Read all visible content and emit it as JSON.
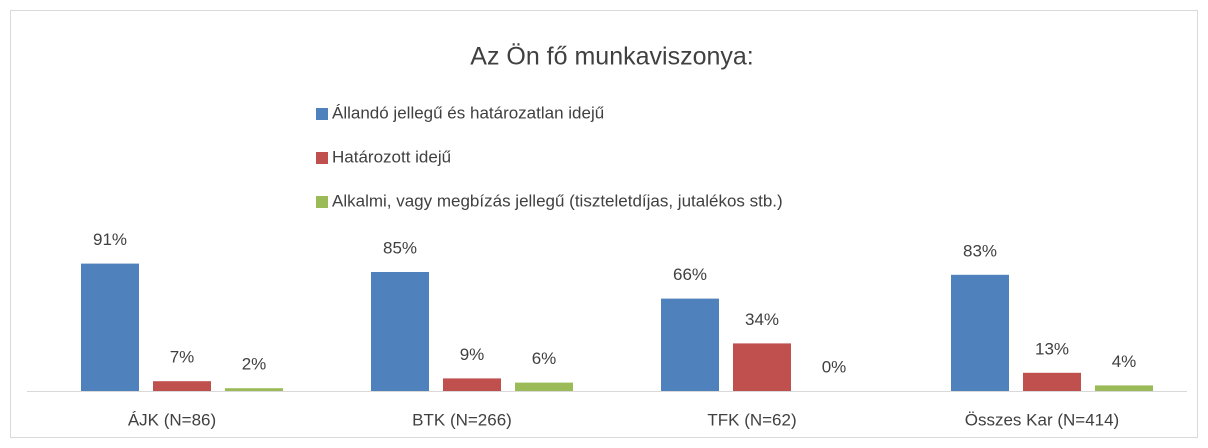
{
  "chart_data": {
    "type": "bar",
    "title": "Az Ön fő munkaviszonya:",
    "categories": [
      "ÁJK (N=86)",
      "BTK (N=266)",
      "TFK (N=62)",
      "Összes Kar (N=414)"
    ],
    "series": [
      {
        "name": "Állandó jellegű és határozatlan idejű",
        "color": "#4f81bd",
        "values": [
          91,
          85,
          66,
          83
        ],
        "value_labels": [
          "91%",
          "85%",
          "66%",
          "83%"
        ]
      },
      {
        "name": "Határozott idejű",
        "color": "#c0504d",
        "values": [
          7,
          9,
          34,
          13
        ],
        "value_labels": [
          "7%",
          "9%",
          "34%",
          "13%"
        ]
      },
      {
        "name": "Alkalmi, vagy megbízás jellegű (tiszteletdíjas, jutalékos stb.)",
        "color": "#9bbb59",
        "values": [
          2,
          6,
          0,
          4
        ],
        "value_labels": [
          "2%",
          "6%",
          "0%",
          "4%"
        ]
      }
    ]
  }
}
